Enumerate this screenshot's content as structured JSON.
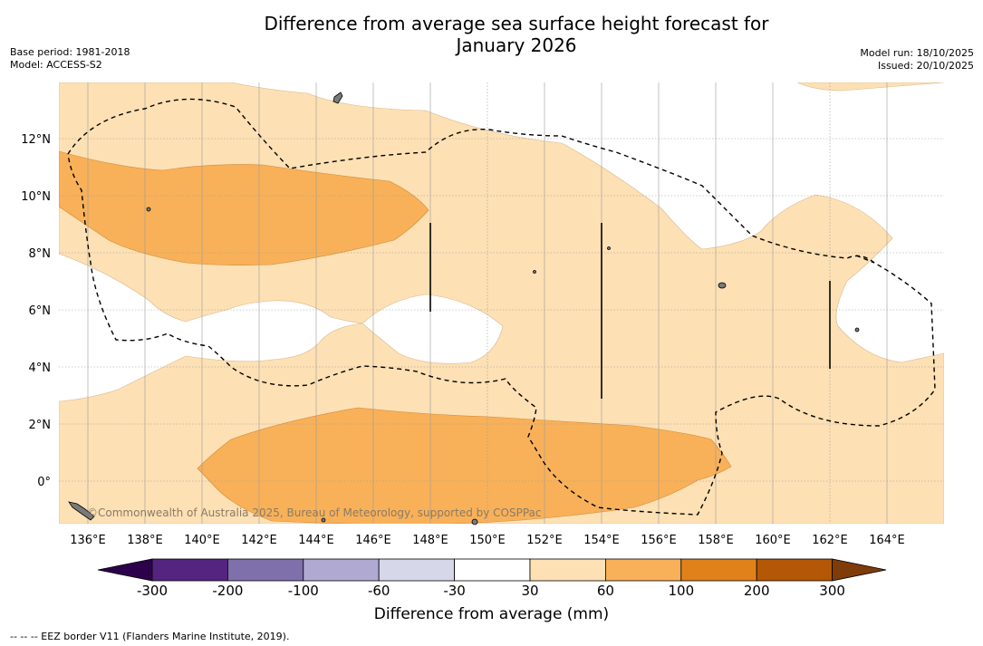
{
  "title_line1": "Difference from average sea surface height forecast for",
  "title_line2": "January 2026",
  "meta_left": [
    "Base period: 1981-2018",
    "Model: ACCESS-S2"
  ],
  "meta_right": [
    "Model run: 18/10/2025",
    "Issued: 20/10/2025"
  ],
  "map": {
    "lon_ticks": [
      "136°E",
      "138°E",
      "140°E",
      "142°E",
      "144°E",
      "146°E",
      "148°E",
      "150°E",
      "152°E",
      "154°E",
      "156°E",
      "158°E",
      "160°E",
      "162°E",
      "164°E"
    ],
    "lat_ticks": [
      "12°N",
      "10°N",
      "8°N",
      "6°N",
      "4°N",
      "2°N",
      "0°"
    ],
    "credit": "©Commonwealth of Australia 2025, Bureau of Meteorology, supported by COSPPac",
    "region": {
      "lon_min": 135,
      "lon_max": 166,
      "lat_min": -1.5,
      "lat_max": 14
    }
  },
  "colorbar": {
    "title": "Difference from average (mm)",
    "labels": [
      "-300",
      "-200",
      "-100",
      "-60",
      "-30",
      "30",
      "60",
      "100",
      "200",
      "300"
    ],
    "colors": [
      "#53257f",
      "#7f6fab",
      "#b0a9d1",
      "#d7d7ea",
      "#ffffff",
      "#fde0b4",
      "#f8b159",
      "#e0811a",
      "#b35806"
    ],
    "extend_low_color": "#2d004b",
    "extend_high_color": "#7f3b08"
  },
  "footnote": "-- -- -- EEZ border V11 (Flanders Marine Institute, 2019)."
}
